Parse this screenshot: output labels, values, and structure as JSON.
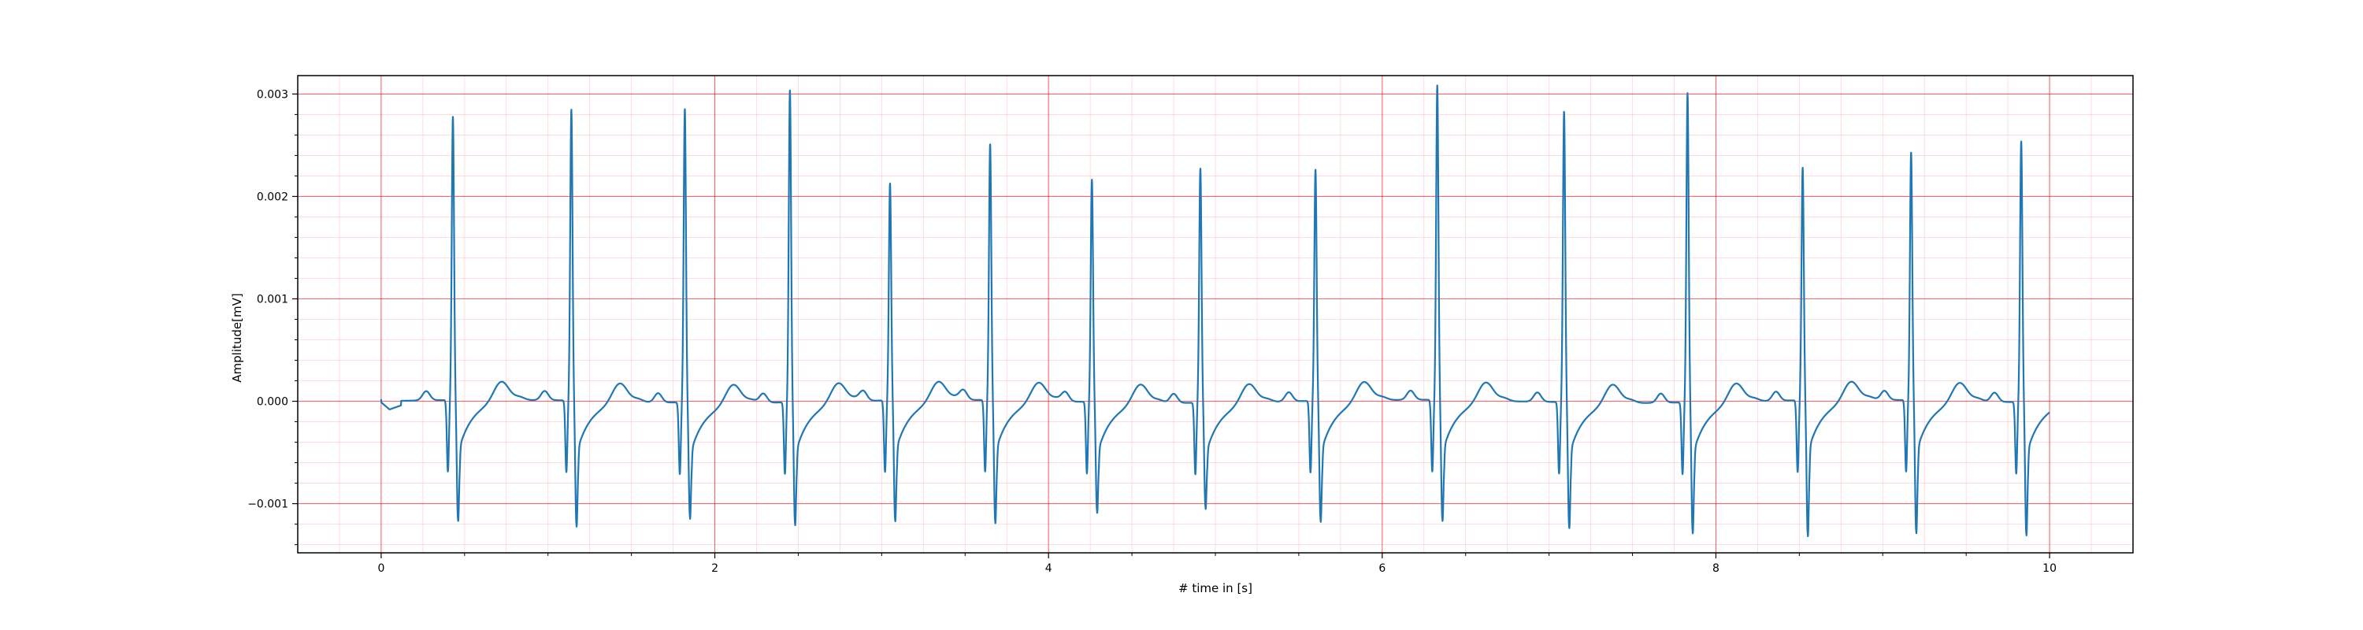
{
  "chart_data": {
    "type": "line",
    "title": "",
    "xlabel": "# time in [s]",
    "ylabel": "Amplitude[mV]",
    "xlim": [
      -0.5,
      10.5
    ],
    "ylim": [
      -0.00148,
      0.00318
    ],
    "x_ticks": [
      0,
      2,
      4,
      6,
      8,
      10
    ],
    "x_tick_labels": [
      "0",
      "2",
      "4",
      "6",
      "8",
      "10"
    ],
    "y_ticks": [
      -0.001,
      0.0,
      0.001,
      0.002,
      0.003
    ],
    "y_tick_labels": [
      "−0.001",
      "0.000",
      "0.001",
      "0.002",
      "0.003"
    ],
    "grid": true,
    "colors": {
      "line": "#1f77b4",
      "major_grid": "#ff0000",
      "minor_grid": "#ffb3b3"
    },
    "beats": [
      {
        "t": 0.43,
        "r": 0.00265,
        "s": -0.0011
      },
      {
        "t": 1.14,
        "r": 0.00272,
        "s": -0.00115
      },
      {
        "t": 1.82,
        "r": 0.00275,
        "s": -0.00105
      },
      {
        "t": 2.45,
        "r": 0.00293,
        "s": -0.00112
      },
      {
        "t": 3.05,
        "r": 0.002,
        "s": -0.0011
      },
      {
        "t": 3.65,
        "r": 0.00238,
        "s": -0.00112
      },
      {
        "t": 4.26,
        "r": 0.00205,
        "s": -0.001
      },
      {
        "t": 4.91,
        "r": 0.00217,
        "s": -0.00095
      },
      {
        "t": 5.6,
        "r": 0.00214,
        "s": -0.0011
      },
      {
        "t": 6.33,
        "r": 0.00295,
        "s": -0.0011
      },
      {
        "t": 7.09,
        "r": 0.00272,
        "s": -0.00115
      },
      {
        "t": 7.83,
        "r": 0.0029,
        "s": -0.0012
      },
      {
        "t": 8.52,
        "r": 0.00215,
        "s": -0.00125
      },
      {
        "t": 9.17,
        "r": 0.0023,
        "s": -0.00122
      },
      {
        "t": 9.83,
        "r": 0.00243,
        "s": -0.00122
      }
    ],
    "series": [
      {
        "values_source": "ECG trace, 0 to 10 s"
      }
    ]
  }
}
